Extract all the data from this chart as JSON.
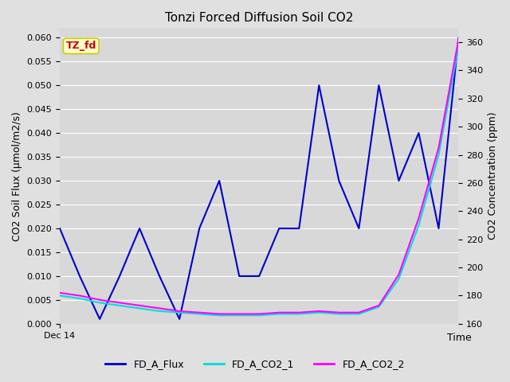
{
  "title": "Tonzi Forced Diffusion Soil CO2",
  "xlabel": "Time",
  "ylabel_left": "CO2 Soil Flux (μmol/m2/s)",
  "ylabel_right": "CO2 Concentration (ppm)",
  "ylim_left": [
    0.0,
    0.062
  ],
  "ylim_right": [
    160,
    370
  ],
  "yticks_left": [
    0.0,
    0.005,
    0.01,
    0.015,
    0.02,
    0.025,
    0.03,
    0.035,
    0.04,
    0.045,
    0.05,
    0.055,
    0.06
  ],
  "yticks_right": [
    160,
    180,
    200,
    220,
    240,
    260,
    280,
    300,
    320,
    340,
    360
  ],
  "x_values": [
    0,
    1,
    2,
    3,
    4,
    5,
    6,
    7,
    8,
    9,
    10,
    11,
    12,
    13,
    14,
    15,
    16,
    17,
    18,
    19,
    20
  ],
  "fd_a_flux": [
    0.02,
    0.01,
    0.001,
    0.01,
    0.02,
    0.01,
    0.001,
    0.02,
    0.03,
    0.01,
    0.01,
    0.02,
    0.02,
    0.05,
    0.03,
    0.02,
    0.05,
    0.03,
    0.04,
    0.02,
    0.06
  ],
  "fd_a_co2_1_ppm": [
    180,
    178,
    175,
    173,
    171,
    169,
    168,
    167,
    166,
    166,
    166,
    167,
    167,
    168,
    167,
    167,
    172,
    192,
    230,
    280,
    357
  ],
  "fd_a_co2_2_ppm": [
    182,
    180,
    177,
    175,
    173,
    171,
    169,
    168,
    167,
    167,
    167,
    168,
    168,
    169,
    168,
    168,
    173,
    195,
    235,
    285,
    362
  ],
  "color_flux": "#0000cc",
  "color_co2_1": "#00dddd",
  "color_co2_2": "#ff00ff",
  "fig_facecolor": "#e0e0e0",
  "plot_bg_color": "#d8d8d8",
  "grid_color": "#ffffff",
  "x_tick_label": "Dec 14",
  "x_tick_pos": 0,
  "watermark_text": "TZ_fd",
  "watermark_color": "#cc0000",
  "watermark_bg": "#ffffcc",
  "watermark_edge": "#cccc00",
  "legend_labels": [
    "FD_A_Flux",
    "FD_A_CO2_1",
    "FD_A_CO2_2"
  ],
  "xlim": [
    0,
    20
  ],
  "linewidth": 1.5
}
